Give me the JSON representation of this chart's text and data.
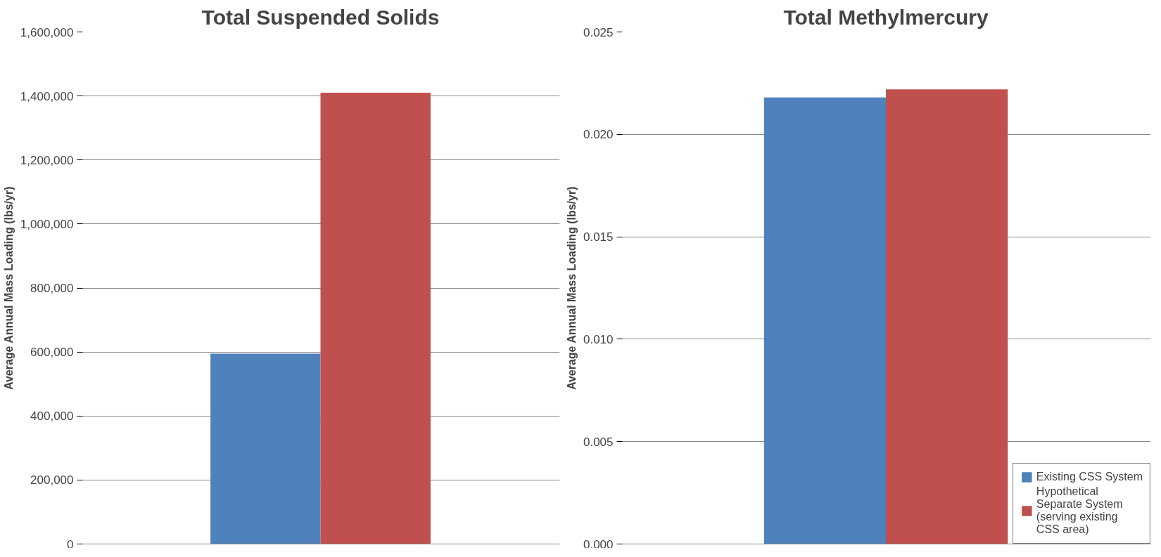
{
  "chart_data": [
    {
      "type": "bar",
      "title": "Total Suspended Solids",
      "ylabel": "Average Annual Mass Loading (lbs/yr)",
      "categories": [
        null
      ],
      "series": [
        {
          "color": "#4f81bd",
          "values": [
            595000
          ]
        },
        {
          "color": "#c0504d",
          "values": [
            1410000
          ]
        }
      ],
      "ylim": [
        0,
        1600000
      ],
      "yticks": [
        {
          "value": 0,
          "label": "0"
        },
        {
          "value": 200000,
          "label": "200,000"
        },
        {
          "value": 400000,
          "label": "400,000"
        },
        {
          "value": 600000,
          "label": "600,000"
        },
        {
          "value": 800000,
          "label": "800,000"
        },
        {
          "value": 1000000,
          "label": "1,000,000"
        },
        {
          "value": 1200000,
          "label": "1,200,000"
        },
        {
          "value": 1400000,
          "label": "1,400,000"
        },
        {
          "value": 1600000,
          "label": "1,600,000"
        }
      ],
      "grid": "y"
    },
    {
      "type": "bar",
      "title": "Total Methylmercury",
      "ylabel": "Average Annual Mass Loading (lbs/yr)",
      "categories": [
        null
      ],
      "series": [
        {
          "name": "Existing CSS System",
          "color": "#4f81bd",
          "values": [
            0.0218
          ]
        },
        {
          "name": "Hypothetical Separate System (serving existing CSS area)",
          "color": "#c0504d",
          "values": [
            0.0222
          ]
        }
      ],
      "ylim": [
        0,
        0.025
      ],
      "yticks": [
        {
          "value": 0,
          "label": "0.000"
        },
        {
          "value": 0.005,
          "label": "0.005"
        },
        {
          "value": 0.01,
          "label": "0.010"
        },
        {
          "value": 0.015,
          "label": "0.015"
        },
        {
          "value": 0.02,
          "label": "0.020"
        },
        {
          "value": 0.025,
          "label": "0.025"
        }
      ],
      "grid": "y",
      "legend": "bottom right"
    }
  ]
}
